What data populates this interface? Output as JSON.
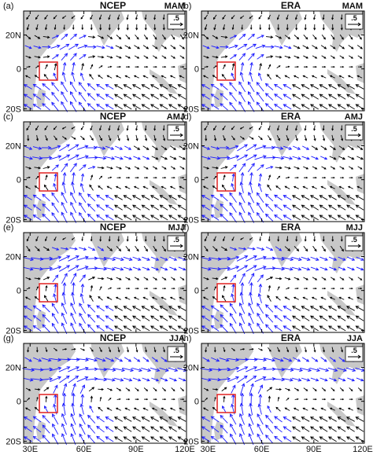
{
  "figure": {
    "panels": [
      {
        "id": "a",
        "label": "(a)",
        "dataset": "NCEP",
        "season": "MAM"
      },
      {
        "id": "b",
        "label": "(b)",
        "dataset": "ERA",
        "season": "MAM"
      },
      {
        "id": "c",
        "label": "(c)",
        "dataset": "NCEP",
        "season": "AMJ"
      },
      {
        "id": "d",
        "label": "(d)",
        "dataset": "ERA",
        "season": "AMJ"
      },
      {
        "id": "e",
        "label": "(e)",
        "dataset": "NCEP",
        "season": "MJJ"
      },
      {
        "id": "f",
        "label": "(f)",
        "dataset": "ERA",
        "season": "MJJ"
      },
      {
        "id": "g",
        "label": "(g)",
        "dataset": "NCEP",
        "season": "JJA"
      },
      {
        "id": "h",
        "label": "(h)",
        "dataset": "ERA",
        "season": "JJA"
      }
    ],
    "y_ticks": [
      "20N",
      "0",
      "20S"
    ],
    "x_ticks": [
      "30E",
      "60E",
      "90E",
      "120E"
    ],
    "reference_vector_label": ".5",
    "colors": {
      "significant_vector": "#1a1aff",
      "other_vector": "#000000",
      "land": "#c8c8c8",
      "ocean": "#ffffff",
      "box": "#e02020"
    }
  }
}
